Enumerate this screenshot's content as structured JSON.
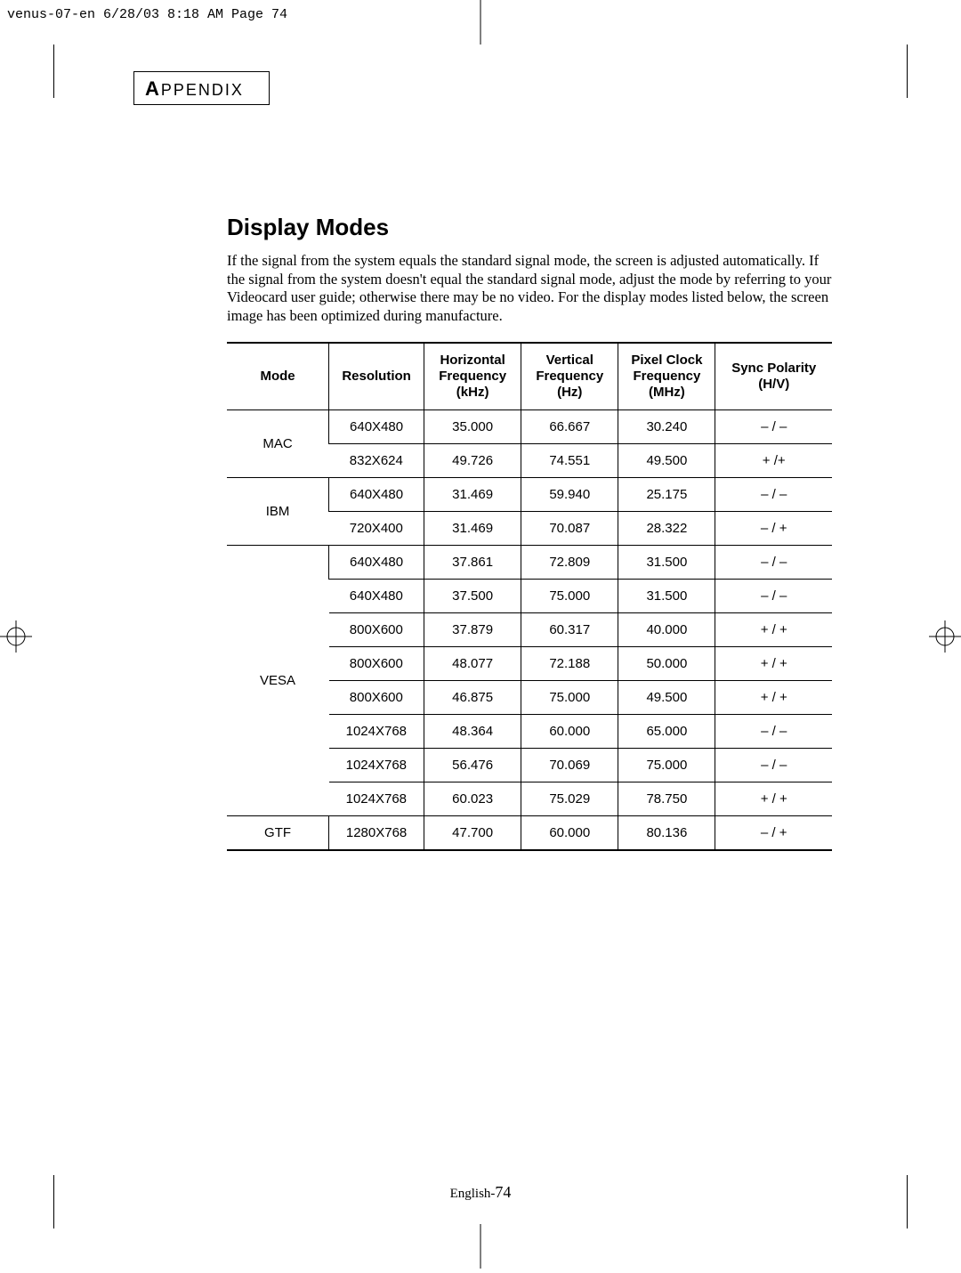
{
  "header": {
    "file_info": "venus-07-en  6/28/03  8:18 AM  Page 74"
  },
  "section": {
    "letter": "A",
    "rest": "PPENDIX"
  },
  "title": "Display Modes",
  "intro": "If the signal from the system equals the standard signal mode, the screen is adjusted automatically. If the signal from the system doesn't equal the standard signal mode, adjust the mode by referring to your Videocard user guide; otherwise there may be no video. For the display modes listed below, the screen image has been optimized during manufacture.",
  "table": {
    "headers": {
      "mode": "Mode",
      "resolution": "Resolution",
      "hfreq": "Horizontal Frequency (kHz)",
      "vfreq": "Vertical Frequency (Hz)",
      "pclock": "Pixel Clock Frequency (MHz)",
      "sync": "Sync Polarity (H/V)"
    },
    "groups": [
      {
        "mode": "MAC",
        "rows": [
          {
            "res": "640X480",
            "hf": "35.000",
            "vf": "66.667",
            "pc": "30.240",
            "sp": "– / –"
          },
          {
            "res": "832X624",
            "hf": "49.726",
            "vf": "74.551",
            "pc": "49.500",
            "sp": "+ /+"
          }
        ]
      },
      {
        "mode": "IBM",
        "rows": [
          {
            "res": "640X480",
            "hf": "31.469",
            "vf": "59.940",
            "pc": "25.175",
            "sp": "– / –"
          },
          {
            "res": "720X400",
            "hf": "31.469",
            "vf": "70.087",
            "pc": "28.322",
            "sp": "– / +"
          }
        ]
      },
      {
        "mode": "VESA",
        "rows": [
          {
            "res": "640X480",
            "hf": "37.861",
            "vf": "72.809",
            "pc": "31.500",
            "sp": "– / –"
          },
          {
            "res": "640X480",
            "hf": "37.500",
            "vf": "75.000",
            "pc": "31.500",
            "sp": "– / –"
          },
          {
            "res": "800X600",
            "hf": "37.879",
            "vf": "60.317",
            "pc": "40.000",
            "sp": "+ / +"
          },
          {
            "res": "800X600",
            "hf": "48.077",
            "vf": "72.188",
            "pc": "50.000",
            "sp": "+ / +"
          },
          {
            "res": "800X600",
            "hf": "46.875",
            "vf": "75.000",
            "pc": "49.500",
            "sp": "+ / +"
          },
          {
            "res": "1024X768",
            "hf": "48.364",
            "vf": "60.000",
            "pc": "65.000",
            "sp": "– / –"
          },
          {
            "res": "1024X768",
            "hf": "56.476",
            "vf": "70.069",
            "pc": "75.000",
            "sp": "– / –"
          },
          {
            "res": "1024X768",
            "hf": "60.023",
            "vf": "75.029",
            "pc": "78.750",
            "sp": "+ / +"
          }
        ]
      },
      {
        "mode": "GTF",
        "rows": [
          {
            "res": "1280X768",
            "hf": "47.700",
            "vf": "60.000",
            "pc": "80.136",
            "sp": "– / +"
          }
        ]
      }
    ]
  },
  "footer": {
    "lang": "English-",
    "page": "74"
  },
  "colors": {
    "text": "#000000",
    "bg": "#ffffff",
    "border": "#000000"
  }
}
